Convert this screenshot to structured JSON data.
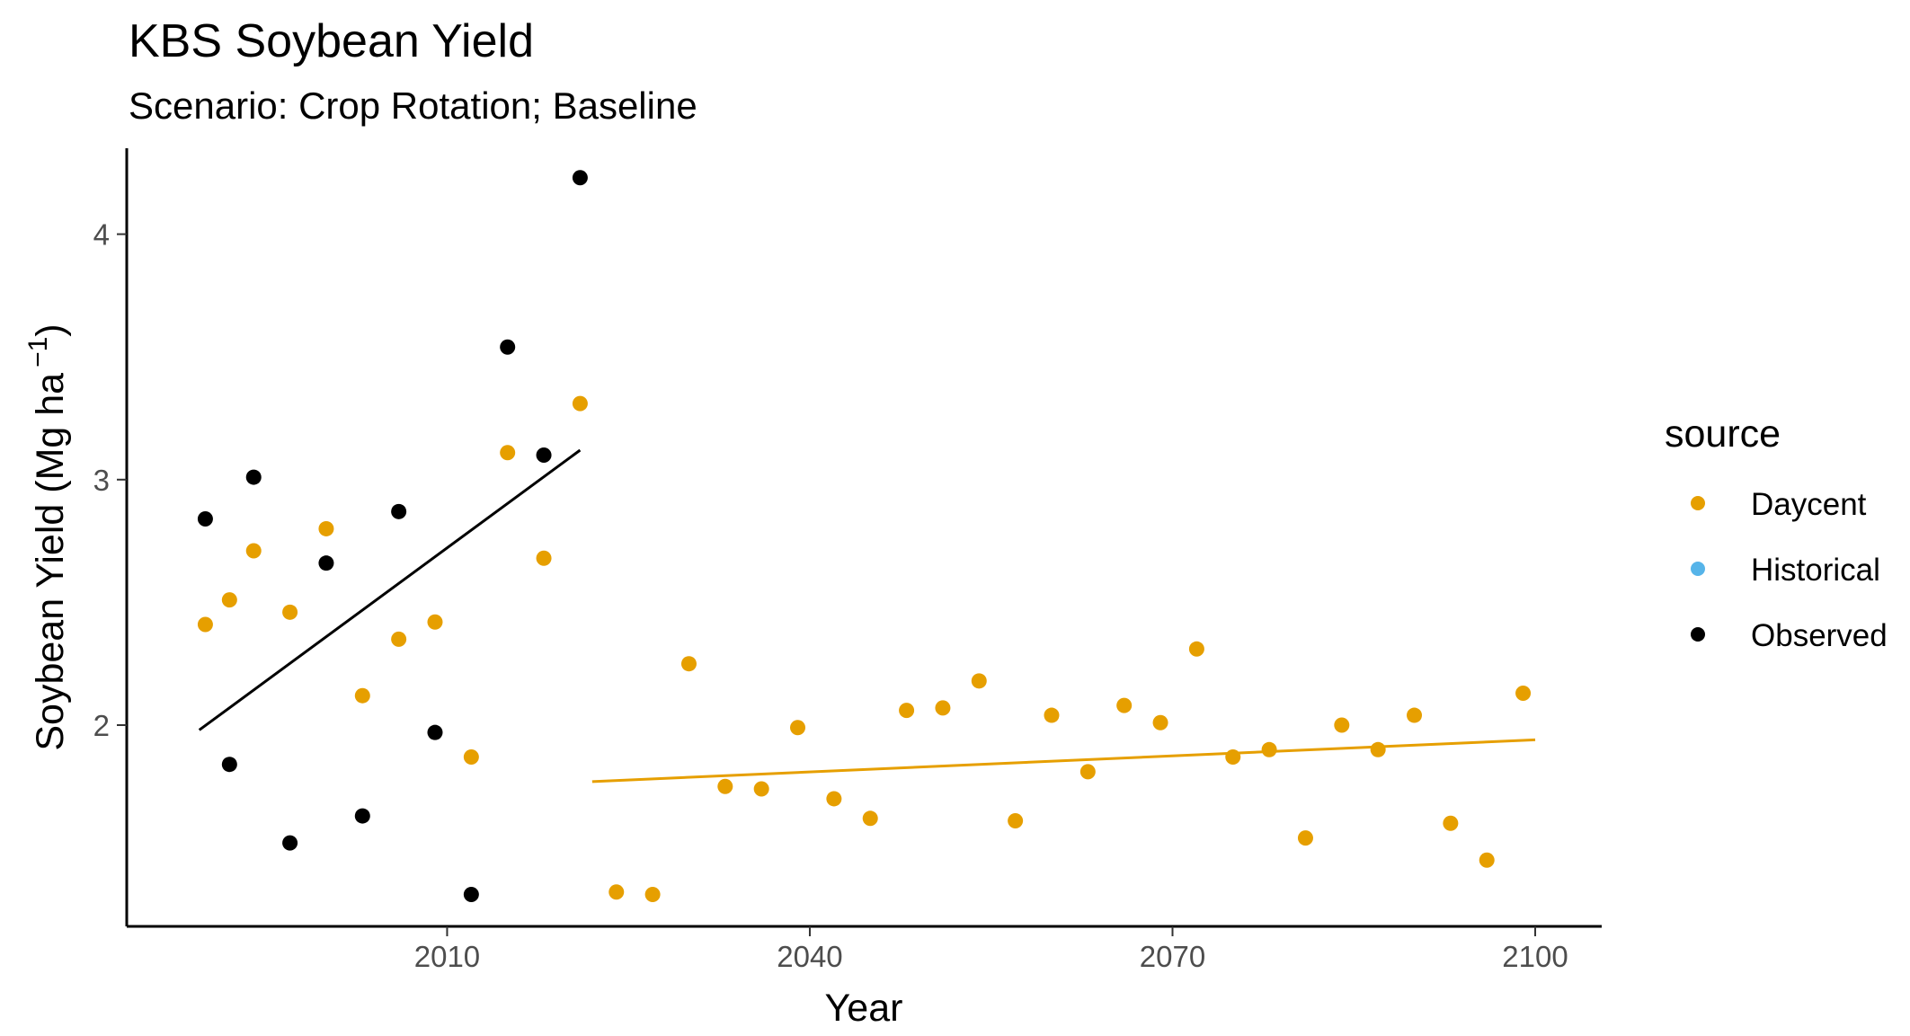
{
  "chart_data": {
    "type": "scatter",
    "title": "KBS Soybean Yield",
    "subtitle": "Scenario: Crop Rotation; Baseline",
    "xlabel": "Year",
    "ylabel_main": "Soybean Yield (Mg ha",
    "ylabel_exp": "−1",
    "ylabel_close": ")",
    "xlim": [
      1983.5,
      2105.5
    ],
    "ylim": [
      1.18,
      4.35
    ],
    "x_ticks": [
      2010,
      2040,
      2070,
      2100
    ],
    "y_ticks": [
      2,
      3,
      4
    ],
    "grid": false,
    "legend": {
      "title": "source",
      "position": "right",
      "entries": [
        {
          "name": "Daycent",
          "color": "#E69F00"
        },
        {
          "name": "Historical",
          "color": "#56B4E9"
        },
        {
          "name": "Observed",
          "color": "#000000"
        }
      ]
    },
    "series": [
      {
        "name": "Observed",
        "color": "#000000",
        "points": [
          [
            1990,
            2.84
          ],
          [
            1992,
            1.84
          ],
          [
            1994,
            3.01
          ],
          [
            1997,
            1.52
          ],
          [
            2000,
            2.66
          ],
          [
            2003,
            1.63
          ],
          [
            2006,
            2.87
          ],
          [
            2009,
            1.97
          ],
          [
            2012,
            1.31
          ],
          [
            2015,
            3.54
          ],
          [
            2018,
            3.1
          ],
          [
            2021,
            4.23
          ]
        ],
        "trend": [
          [
            1989.5,
            1.98
          ],
          [
            2021,
            3.12
          ]
        ]
      },
      {
        "name": "Daycent",
        "color": "#E69F00",
        "points": [
          [
            1990,
            2.41
          ],
          [
            1992,
            2.51
          ],
          [
            1994,
            2.71
          ],
          [
            1997,
            2.46
          ],
          [
            2000,
            2.8
          ],
          [
            2003,
            2.12
          ],
          [
            2006,
            2.35
          ],
          [
            2009,
            2.42
          ],
          [
            2012,
            1.87
          ],
          [
            2015,
            3.11
          ],
          [
            2018,
            2.68
          ],
          [
            2021,
            3.31
          ],
          [
            2024,
            1.32
          ],
          [
            2027,
            1.31
          ],
          [
            2030,
            2.25
          ],
          [
            2033,
            1.75
          ],
          [
            2036,
            1.74
          ],
          [
            2039,
            1.99
          ],
          [
            2042,
            1.7
          ],
          [
            2045,
            1.62
          ],
          [
            2048,
            2.06
          ],
          [
            2051,
            2.07
          ],
          [
            2054,
            2.18
          ],
          [
            2057,
            1.61
          ],
          [
            2060,
            2.04
          ],
          [
            2063,
            1.81
          ],
          [
            2066,
            2.08
          ],
          [
            2069,
            2.01
          ],
          [
            2072,
            2.31
          ],
          [
            2075,
            1.87
          ],
          [
            2078,
            1.9
          ],
          [
            2081,
            1.54
          ],
          [
            2084,
            2.0
          ],
          [
            2087,
            1.9
          ],
          [
            2090,
            2.04
          ],
          [
            2093,
            1.6
          ],
          [
            2096,
            1.45
          ],
          [
            2099,
            2.13
          ]
        ],
        "trend": [
          [
            2022,
            1.77
          ],
          [
            2100,
            1.94
          ]
        ]
      },
      {
        "name": "Historical",
        "color": "#56B4E9",
        "points": []
      }
    ]
  }
}
